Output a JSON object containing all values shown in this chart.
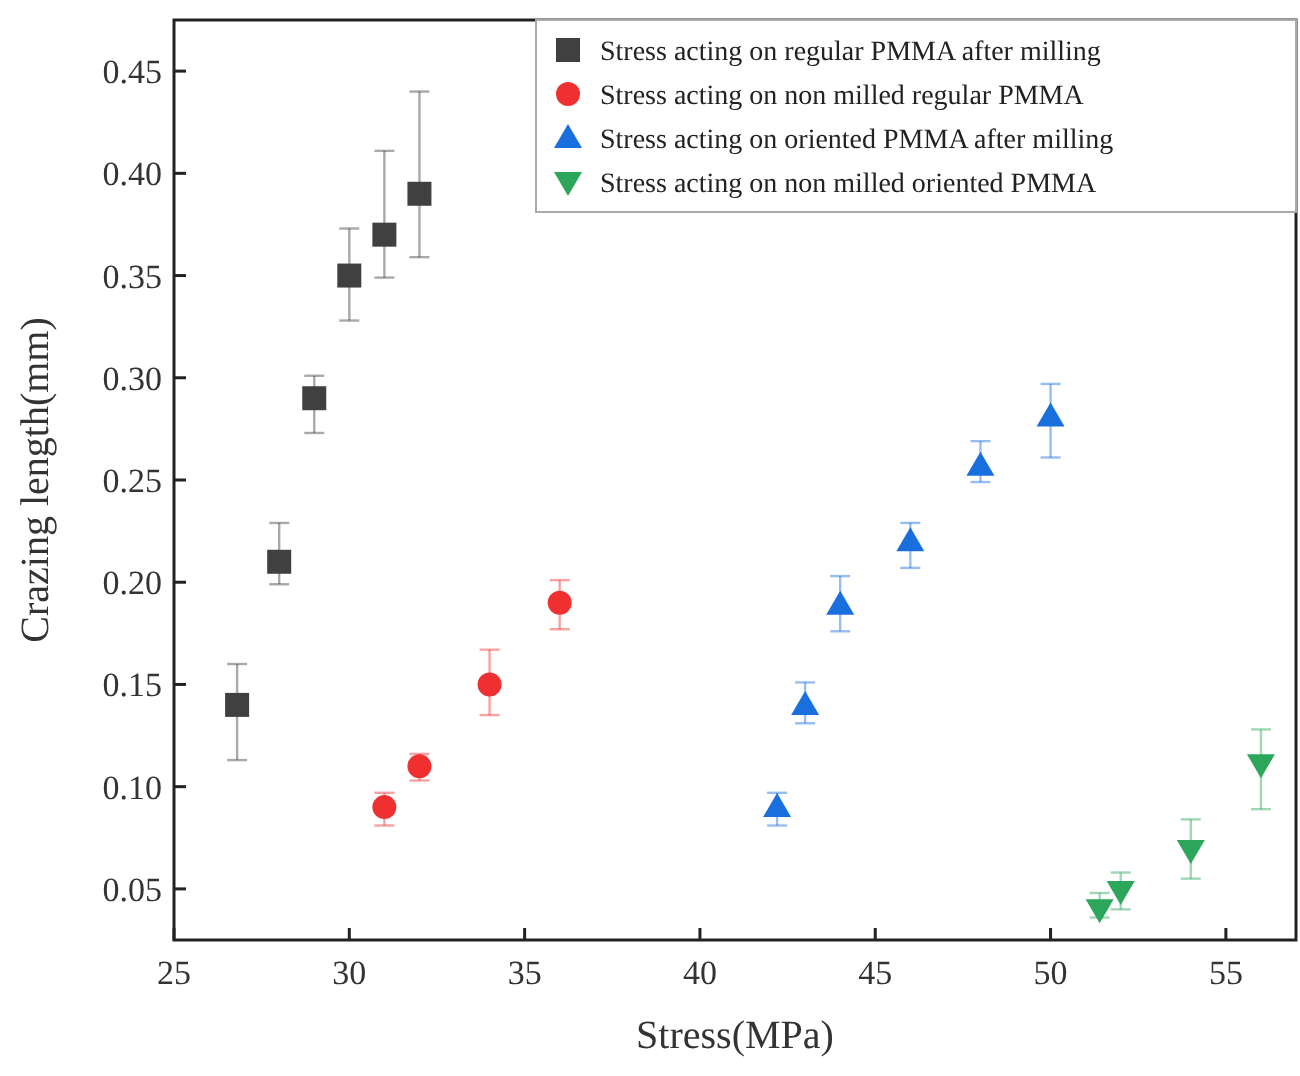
{
  "chart_data": {
    "type": "scatter",
    "xlabel": "Stress(MPa)",
    "ylabel": "Crazing length(mm)",
    "xlim": [
      25,
      57
    ],
    "ylim": [
      0.025,
      0.475
    ],
    "xticks": [
      25,
      30,
      35,
      40,
      45,
      50,
      55
    ],
    "yticks": [
      {
        "value": 0.05,
        "label": "0.05"
      },
      {
        "value": 0.1,
        "label": "0.10"
      },
      {
        "value": 0.15,
        "label": "0.15"
      },
      {
        "value": 0.2,
        "label": "0.20"
      },
      {
        "value": 0.25,
        "label": "0.25"
      },
      {
        "value": 0.3,
        "label": "0.30"
      },
      {
        "value": 0.35,
        "label": "0.35"
      },
      {
        "value": 0.4,
        "label": "0.40"
      },
      {
        "value": 0.45,
        "label": "0.45"
      }
    ],
    "grid": false,
    "legend": "top right",
    "series": [
      {
        "name": "Stress acting on regular PMMA after milling",
        "color": "#404040",
        "marker": "square",
        "x": [
          26.8,
          28,
          29,
          30,
          31,
          32
        ],
        "values": [
          0.14,
          0.21,
          0.29,
          0.35,
          0.37,
          0.39
        ],
        "errors": [
          [
            0.113,
            0.16
          ],
          [
            0.199,
            0.229
          ],
          [
            0.273,
            0.301
          ],
          [
            0.328,
            0.373
          ],
          [
            0.349,
            0.411
          ],
          [
            0.359,
            0.44
          ]
        ]
      },
      {
        "name": "Stress acting on non milled regular PMMA",
        "color": "#f03030",
        "marker": "circle",
        "x": [
          31,
          32,
          34,
          36
        ],
        "values": [
          0.09,
          0.11,
          0.15,
          0.19
        ],
        "errors": [
          [
            0.081,
            0.097
          ],
          [
            0.103,
            0.116
          ],
          [
            0.135,
            0.167
          ],
          [
            0.177,
            0.201
          ]
        ]
      },
      {
        "name": "Stress acting on oriented PMMA after milling",
        "color": "#1a6fdf",
        "marker": "triangle",
        "x": [
          42.2,
          43,
          44,
          46,
          48,
          50
        ],
        "values": [
          0.09,
          0.14,
          0.189,
          0.22,
          0.257,
          0.281
        ],
        "errors": [
          [
            0.081,
            0.097
          ],
          [
            0.131,
            0.151
          ],
          [
            0.176,
            0.203
          ],
          [
            0.207,
            0.229
          ],
          [
            0.249,
            0.269
          ],
          [
            0.261,
            0.297
          ]
        ]
      },
      {
        "name": "Stress acting on non milled oriented PMMA",
        "color": "#2ca65a",
        "marker": "triangle-down",
        "x": [
          51.4,
          52,
          54,
          56
        ],
        "values": [
          0.04,
          0.049,
          0.069,
          0.111
        ],
        "errors": [
          [
            0.036,
            0.048
          ],
          [
            0.04,
            0.058
          ],
          [
            0.055,
            0.084
          ],
          [
            0.089,
            0.128
          ]
        ]
      }
    ]
  }
}
